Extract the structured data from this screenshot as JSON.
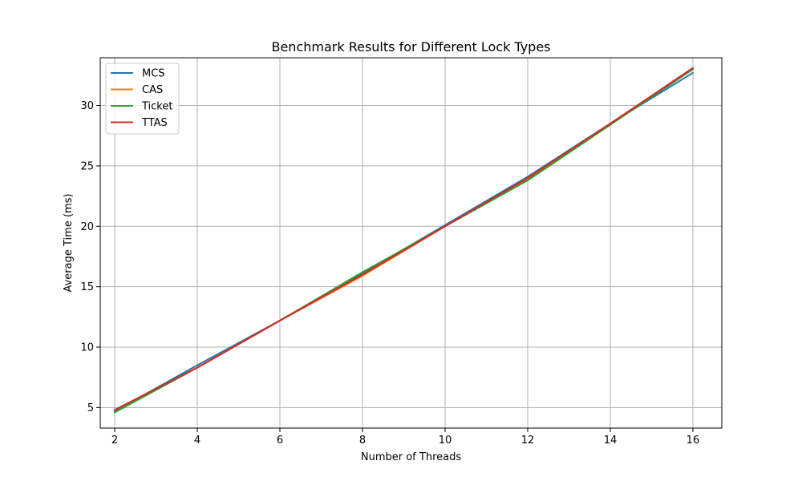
{
  "chart_data": {
    "type": "line",
    "title": "Benchmark Results for Different Lock Types",
    "xlabel": "Number of Threads",
    "ylabel": "Average Time (ms)",
    "x": [
      2,
      4,
      6,
      8,
      10,
      12,
      14,
      16
    ],
    "xlim": [
      1.65,
      16.7
    ],
    "ylim": [
      3.3,
      33.95
    ],
    "xticks": [
      2,
      4,
      6,
      8,
      10,
      12,
      14,
      16
    ],
    "yticks": [
      5,
      10,
      15,
      20,
      25,
      30
    ],
    "grid": true,
    "legend_position": "top-left",
    "series": [
      {
        "name": "MCS",
        "color": "#1f77b4",
        "values": [
          4.7,
          8.5,
          12.2,
          16.1,
          20.1,
          24.1,
          28.5,
          32.7
        ]
      },
      {
        "name": "CAS",
        "color": "#ff7f0e",
        "values": [
          4.8,
          8.3,
          12.2,
          15.9,
          20.0,
          23.9,
          28.5,
          33.0
        ]
      },
      {
        "name": "Ticket",
        "color": "#2ca02c",
        "values": [
          4.6,
          8.3,
          12.2,
          16.2,
          20.0,
          23.8,
          28.4,
          33.0
        ]
      },
      {
        "name": "TTAS",
        "color": "#d62728",
        "values": [
          4.8,
          8.3,
          12.2,
          16.0,
          20.0,
          24.0,
          28.5,
          33.1
        ]
      }
    ]
  }
}
